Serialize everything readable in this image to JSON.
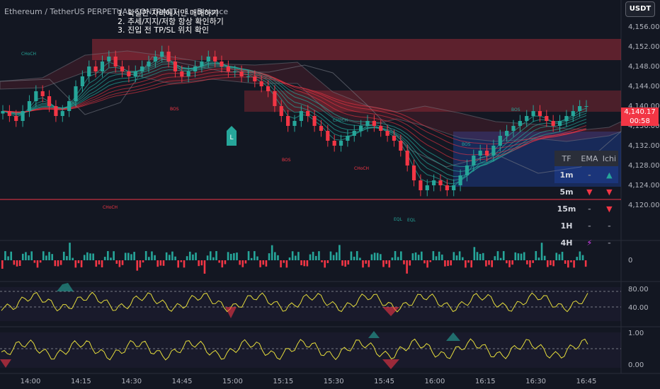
{
  "header": {
    "title": "Ethereum / TetherUS PERPETUAL CONTRACT · 1 · Binance",
    "currency": "USDT"
  },
  "notes": [
    "1. 확실한 자리에서만 매매하기",
    "2. 추세/지지/저항 항상 확인하기",
    "3. 진입 전 TP/SL 위치 확인"
  ],
  "price_axis": {
    "ticks": [
      "4,156.00",
      "4,152.00",
      "4,148.00",
      "4,144.00",
      "4,140.00",
      "4,136.00",
      "4,132.00",
      "4,128.00",
      "4,124.00",
      "4,120.00"
    ],
    "last_price": "4,140.17",
    "countdown": "00:58"
  },
  "time_axis": {
    "ticks": [
      "14:00",
      "14:15",
      "14:30",
      "14:45",
      "15:00",
      "15:15",
      "15:30",
      "15:45",
      "16:00",
      "16:15",
      "16:30",
      "16:45"
    ]
  },
  "annotations": {
    "choch": [
      "CHoCH",
      "CHoCH",
      "CHoCH",
      "CHoCH"
    ],
    "bos": [
      "BOS",
      "BOS",
      "BOS",
      "BOS"
    ],
    "eql": [
      "EQL",
      "EQL"
    ]
  },
  "tf_table": {
    "headers": [
      "TF",
      "EMA",
      "Ichi"
    ],
    "rows": [
      {
        "tf": "1m",
        "ema": "-",
        "ichi": "▲"
      },
      {
        "tf": "5m",
        "ema": "▼",
        "ichi": "▼"
      },
      {
        "tf": "15m",
        "ema": "-",
        "ichi": "▼"
      },
      {
        "tf": "1H",
        "ema": "-",
        "ichi": "-"
      },
      {
        "tf": "4H",
        "ema": "⚡",
        "ichi": "-"
      }
    ]
  },
  "pane_axes": {
    "volume": [
      "0"
    ],
    "osc1": [
      "80.00",
      "40.00"
    ],
    "osc2": [
      "1.00",
      "0.00"
    ]
  },
  "colors": {
    "bull": "#26a69a",
    "bear": "#f23645",
    "bg": "#131722"
  },
  "chart_data": {
    "type": "candlestick",
    "ylim": [
      4117,
      4159
    ],
    "close_series": [
      4139,
      4138,
      4137,
      4139,
      4141,
      4143,
      4142,
      4140,
      4138,
      4139,
      4141,
      4144,
      4146,
      4148,
      4147,
      4149,
      4150,
      4148,
      4147,
      4146,
      4147,
      4148,
      4149,
      4150,
      4151,
      4149,
      4147,
      4146,
      4147,
      4148,
      4149,
      4150,
      4149,
      4148,
      4147,
      4147,
      4146,
      4146,
      4145,
      4144,
      4143,
      4140,
      4138,
      4136,
      4137,
      4139,
      4138,
      4136,
      4135,
      4133,
      4132,
      4133,
      4134,
      4135,
      4136,
      4137,
      4136,
      4135,
      4134,
      4133,
      4131,
      4128,
      4125,
      4123,
      4124,
      4125,
      4124,
      4123,
      4124,
      4126,
      4128,
      4130,
      4131,
      4130,
      4132,
      4134,
      4135,
      4136,
      4137,
      4138,
      4139,
      4138,
      4137,
      4136,
      4137,
      4138,
      4139,
      4140,
      4140
    ]
  }
}
